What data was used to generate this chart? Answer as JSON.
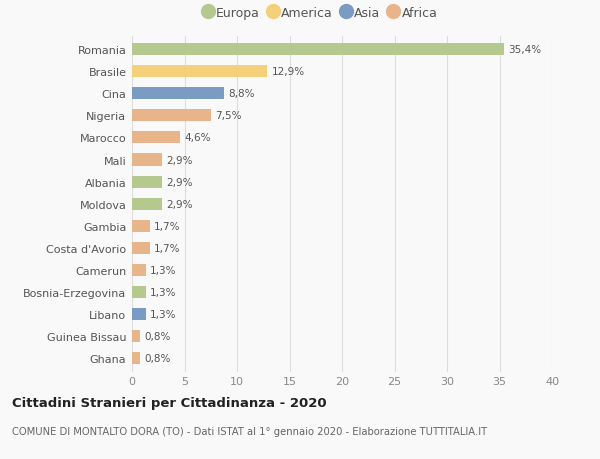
{
  "categories": [
    "Romania",
    "Brasile",
    "Cina",
    "Nigeria",
    "Marocco",
    "Mali",
    "Albania",
    "Moldova",
    "Gambia",
    "Costa d'Avorio",
    "Camerun",
    "Bosnia-Erzegovina",
    "Libano",
    "Guinea Bissau",
    "Ghana"
  ],
  "values": [
    35.4,
    12.9,
    8.8,
    7.5,
    4.6,
    2.9,
    2.9,
    2.9,
    1.7,
    1.7,
    1.3,
    1.3,
    1.3,
    0.8,
    0.8
  ],
  "labels": [
    "35,4%",
    "12,9%",
    "8,8%",
    "7,5%",
    "4,6%",
    "2,9%",
    "2,9%",
    "2,9%",
    "1,7%",
    "1,7%",
    "1,3%",
    "1,3%",
    "1,3%",
    "0,8%",
    "0,8%"
  ],
  "continents": [
    "Europa",
    "America",
    "Asia",
    "Africa",
    "Africa",
    "Africa",
    "Europa",
    "Europa",
    "Africa",
    "Africa",
    "Africa",
    "Europa",
    "Asia",
    "Africa",
    "Africa"
  ],
  "colors": {
    "Europa": "#b5c98e",
    "America": "#f5d07a",
    "Asia": "#7a9bc4",
    "Africa": "#e8b48a"
  },
  "legend_order": [
    "Europa",
    "America",
    "Asia",
    "Africa"
  ],
  "xlim": [
    0,
    40
  ],
  "xticks": [
    0,
    5,
    10,
    15,
    20,
    25,
    30,
    35,
    40
  ],
  "title": "Cittadini Stranieri per Cittadinanza - 2020",
  "subtitle": "COMUNE DI MONTALTO DORA (TO) - Dati ISTAT al 1° gennaio 2020 - Elaborazione TUTTITALIA.IT",
  "bg_color": "#f9f9f9",
  "grid_color": "#dddddd"
}
